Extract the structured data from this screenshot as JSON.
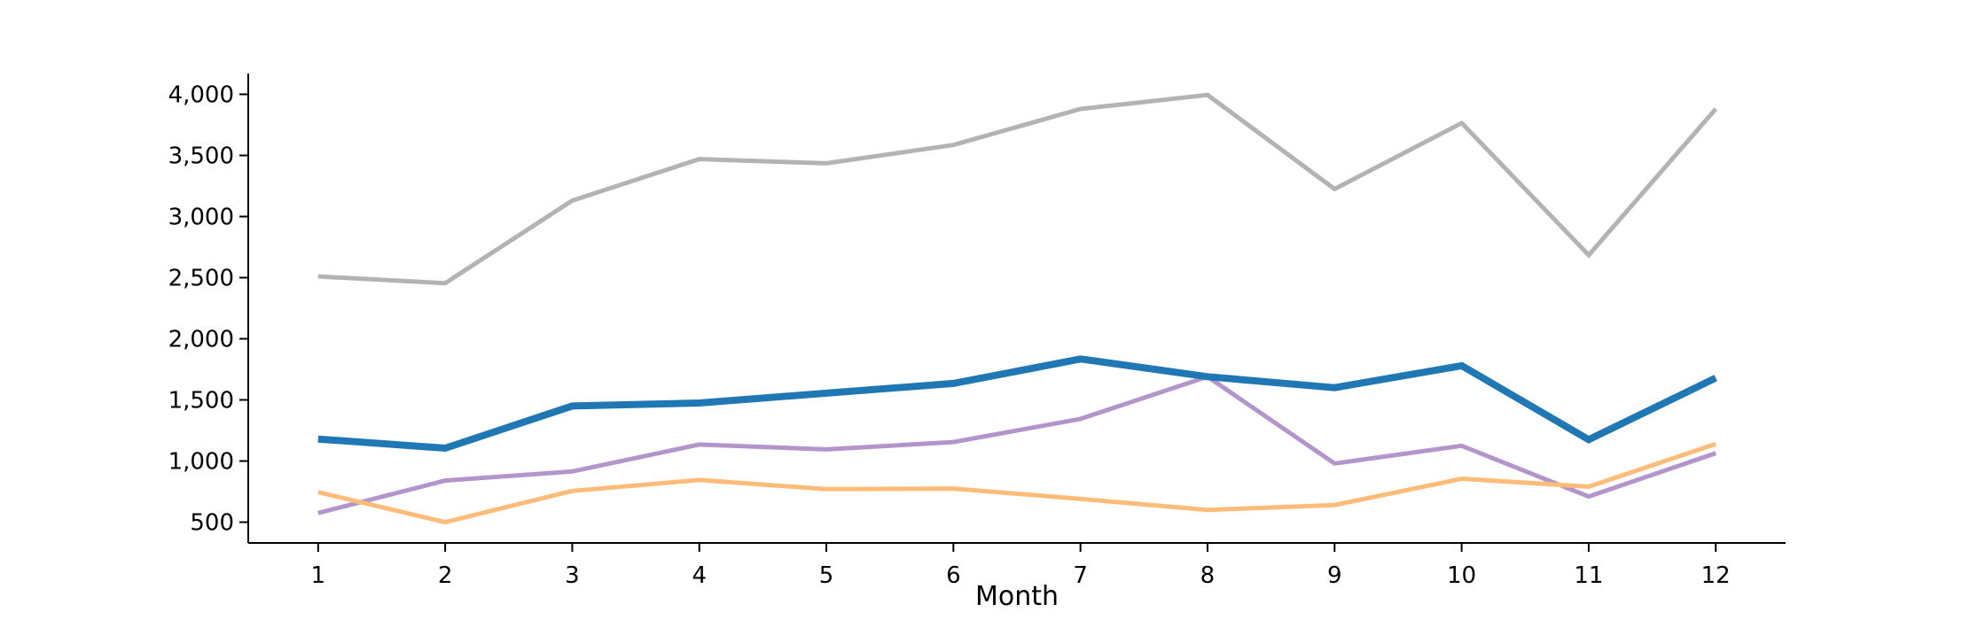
{
  "chart_data": {
    "type": "line",
    "title": "",
    "xlabel": "Month",
    "ylabel": "",
    "x": [
      1,
      2,
      3,
      4,
      5,
      6,
      7,
      8,
      9,
      10,
      11,
      12
    ],
    "xticks": [
      "1",
      "2",
      "3",
      "4",
      "5",
      "6",
      "7",
      "8",
      "9",
      "10",
      "11",
      "12"
    ],
    "yticks": [
      500,
      1000,
      1500,
      2000,
      2500,
      3000,
      3500,
      4000
    ],
    "ytick_labels": [
      "500",
      "1,000",
      "1,500",
      "2,000",
      "2,500",
      "3,000",
      "3,500",
      "4,000"
    ],
    "ylim": [
      330,
      4170
    ],
    "xlim": [
      0.45,
      12.55
    ],
    "grid": false,
    "legend": "none",
    "series": [
      {
        "color": "#b3b3b3",
        "emphasis": "normal",
        "values": [
          2510,
          2455,
          3130,
          3470,
          3435,
          3585,
          3880,
          3995,
          3225,
          3765,
          2685,
          3880
        ]
      },
      {
        "color": "#1f77b4",
        "emphasis": "bold",
        "values": [
          1180,
          1105,
          1450,
          1475,
          1555,
          1635,
          1835,
          1690,
          1600,
          1780,
          1175,
          1680
        ]
      },
      {
        "color": "#b395cc",
        "emphasis": "normal",
        "values": [
          575,
          840,
          915,
          1135,
          1095,
          1155,
          1345,
          1690,
          980,
          1125,
          710,
          1065
        ]
      },
      {
        "color": "#ffbb78",
        "emphasis": "normal",
        "values": [
          745,
          500,
          755,
          845,
          770,
          775,
          690,
          600,
          640,
          855,
          790,
          1140
        ]
      }
    ]
  }
}
